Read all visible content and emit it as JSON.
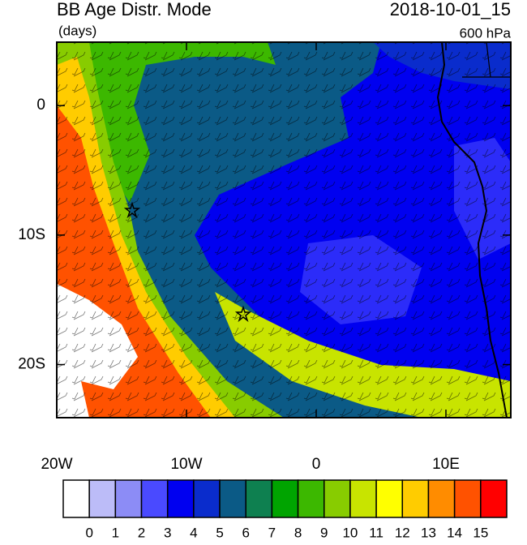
{
  "map": {
    "title": "BB Age Distr. Mode",
    "units": "(days)",
    "date": "2018-10-01_15",
    "level": "600 hPa",
    "xlim": [
      -20,
      15
    ],
    "ylim": [
      -24.1,
      4.9
    ],
    "xticks": [
      {
        "value": -20,
        "label": "20W"
      },
      {
        "value": -10,
        "label": "10W"
      },
      0,
      {
        "value": 10,
        "label": "10E"
      }
    ],
    "yticks": [
      0,
      {
        "value": -10,
        "label": "10S"
      },
      {
        "value": -20,
        "label": "20S"
      }
    ],
    "colorbar": {
      "levels": [
        0,
        1,
        2,
        3,
        4,
        5,
        6,
        7,
        8,
        9,
        10,
        11,
        12,
        13,
        14,
        15
      ],
      "colors": [
        "#ffffff",
        "#bcbcf8",
        "#8c8cf6",
        "#4a4aff",
        "#0000f0",
        "#0a2ccc",
        "#0b5a86",
        "#0e8050",
        "#00a400",
        "#3cb800",
        "#88cc00",
        "#c8e400",
        "#ffff00",
        "#ffcc00",
        "#ff8c00",
        "#ff5200",
        "#ff0000"
      ]
    }
  }
}
